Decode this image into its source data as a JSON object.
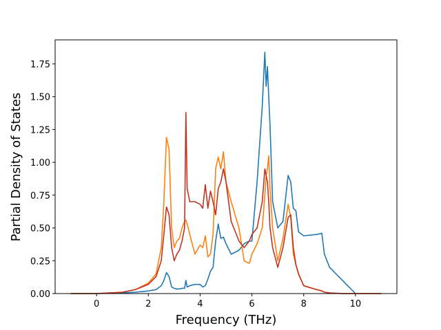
{
  "chart_data": {
    "type": "line",
    "xlabel": "Frequency (THz)",
    "ylabel": "Partial Density of States",
    "x": [
      -1,
      0,
      1,
      1.5,
      2,
      2.3,
      2.5,
      2.6,
      2.7,
      2.8,
      2.9,
      3.0,
      3.1,
      3.2,
      3.3,
      3.4,
      3.45,
      3.5,
      3.6,
      3.8,
      4.0,
      4.1,
      4.2,
      4.3,
      4.4,
      4.5,
      4.6,
      4.7,
      4.8,
      4.9,
      5.0,
      5.2,
      5.5,
      5.7,
      5.9,
      6.0,
      6.2,
      6.4,
      6.5,
      6.55,
      6.6,
      6.65,
      6.7,
      6.8,
      7.0,
      7.2,
      7.4,
      7.5,
      7.6,
      7.7,
      7.8,
      8.0,
      8.5,
      8.7,
      8.8,
      9.0,
      9.5,
      10.0,
      11.0
    ],
    "series": [
      {
        "color": "#1f77b4",
        "values": [
          0,
          0,
          0.005,
          0.01,
          0.02,
          0.03,
          0.06,
          0.1,
          0.16,
          0.13,
          0.05,
          0.04,
          0.035,
          0.035,
          0.04,
          0.04,
          0.1,
          0.05,
          0.06,
          0.07,
          0.07,
          0.05,
          0.06,
          0.11,
          0.17,
          0.2,
          0.4,
          0.53,
          0.42,
          0.43,
          0.38,
          0.3,
          0.33,
          0.38,
          0.4,
          0.4,
          0.85,
          1.43,
          1.84,
          1.58,
          1.73,
          1.5,
          1.28,
          0.7,
          0.5,
          0.55,
          0.9,
          0.85,
          0.65,
          0.63,
          0.47,
          0.44,
          0.45,
          0.46,
          0.3,
          0.2,
          0.1,
          0.0,
          null
        ]
      },
      {
        "color": "#ff7f0e",
        "values": [
          0,
          0,
          0.01,
          0.03,
          0.08,
          0.15,
          0.35,
          0.7,
          1.19,
          1.1,
          0.5,
          0.35,
          0.4,
          0.42,
          0.5,
          0.55,
          0.56,
          0.53,
          0.45,
          0.3,
          0.37,
          0.35,
          0.44,
          0.28,
          0.3,
          0.45,
          0.95,
          1.04,
          0.95,
          1.08,
          0.85,
          0.7,
          0.5,
          0.25,
          0.23,
          0.3,
          0.38,
          0.5,
          0.75,
          0.9,
          0.95,
          1.05,
          0.8,
          0.5,
          0.25,
          0.42,
          0.68,
          0.58,
          0.3,
          0.22,
          0.15,
          0.06,
          0.03,
          0.02,
          0.01,
          0.005,
          0,
          0,
          0
        ]
      },
      {
        "color": "#c0321f",
        "values": [
          0,
          0,
          0.01,
          0.03,
          0.07,
          0.13,
          0.25,
          0.45,
          0.66,
          0.6,
          0.35,
          0.25,
          0.3,
          0.33,
          0.4,
          0.5,
          1.38,
          0.8,
          0.7,
          0.7,
          0.68,
          0.65,
          0.83,
          0.65,
          0.78,
          0.7,
          0.6,
          0.8,
          0.85,
          0.95,
          0.85,
          0.55,
          0.4,
          0.35,
          0.4,
          0.45,
          0.5,
          0.7,
          0.95,
          0.9,
          0.85,
          0.7,
          0.5,
          0.35,
          0.2,
          0.35,
          0.58,
          0.6,
          0.35,
          0.22,
          0.15,
          0.06,
          0.03,
          0.02,
          0.01,
          0.005,
          0,
          0,
          0
        ]
      }
    ],
    "xlim": [
      -1.6,
      11.6
    ],
    "ylim": [
      0,
      1.933
    ],
    "xticks": [
      0,
      2,
      4,
      6,
      8,
      10
    ],
    "yticks": [
      {
        "value": 0,
        "label": "0.00"
      },
      0.25,
      {
        "value": 0.5,
        "label": "0.50"
      },
      0.75,
      {
        "value": 1,
        "label": "1.00"
      },
      1.25,
      {
        "value": 1.5,
        "label": "1.50"
      },
      1.75
    ],
    "grid": false
  }
}
